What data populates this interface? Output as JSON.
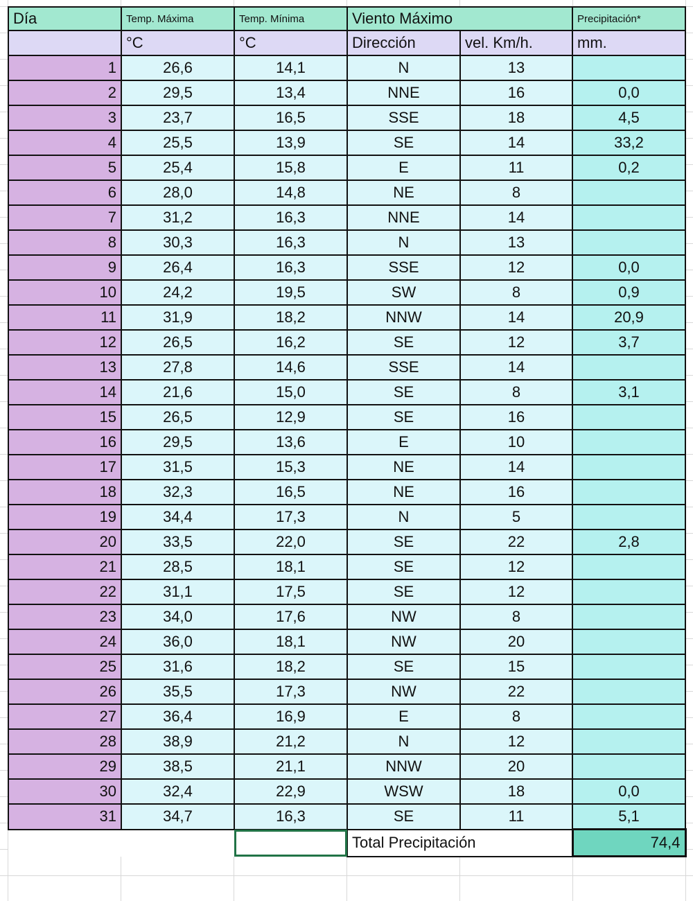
{
  "headers": {
    "dia": "Día",
    "tmax": "Temp. Máxima",
    "tmin": "Temp. Mínima",
    "viento": "Viento Máximo",
    "precip": "Precipitación*"
  },
  "units": {
    "tmax": "°C",
    "tmin": "°C",
    "dir": "Dirección",
    "vel": "vel. Km/h.",
    "precip": "mm."
  },
  "rows": [
    [
      "1",
      "26,6",
      "14,1",
      "N",
      "13",
      ""
    ],
    [
      "2",
      "29,5",
      "13,4",
      "NNE",
      "16",
      "0,0"
    ],
    [
      "3",
      "23,7",
      "16,5",
      "SSE",
      "18",
      "4,5"
    ],
    [
      "4",
      "25,5",
      "13,9",
      "SE",
      "14",
      "33,2"
    ],
    [
      "5",
      "25,4",
      "15,8",
      "E",
      "11",
      "0,2"
    ],
    [
      "6",
      "28,0",
      "14,8",
      "NE",
      "8",
      ""
    ],
    [
      "7",
      "31,2",
      "16,3",
      "NNE",
      "14",
      ""
    ],
    [
      "8",
      "30,3",
      "16,3",
      "N",
      "13",
      ""
    ],
    [
      "9",
      "26,4",
      "16,3",
      "SSE",
      "12",
      "0,0"
    ],
    [
      "10",
      "24,2",
      "19,5",
      "SW",
      "8",
      "0,9"
    ],
    [
      "11",
      "31,9",
      "18,2",
      "NNW",
      "14",
      "20,9"
    ],
    [
      "12",
      "26,5",
      "16,2",
      "SE",
      "12",
      "3,7"
    ],
    [
      "13",
      "27,8",
      "14,6",
      "SSE",
      "14",
      ""
    ],
    [
      "14",
      "21,6",
      "15,0",
      "SE",
      "8",
      "3,1"
    ],
    [
      "15",
      "26,5",
      "12,9",
      "SE",
      "16",
      ""
    ],
    [
      "16",
      "29,5",
      "13,6",
      "E",
      "10",
      ""
    ],
    [
      "17",
      "31,5",
      "15,3",
      "NE",
      "14",
      ""
    ],
    [
      "18",
      "32,3",
      "16,5",
      "NE",
      "16",
      ""
    ],
    [
      "19",
      "34,4",
      "17,3",
      "N",
      "5",
      ""
    ],
    [
      "20",
      "33,5",
      "22,0",
      "SE",
      "22",
      "2,8"
    ],
    [
      "21",
      "28,5",
      "18,1",
      "SE",
      "12",
      ""
    ],
    [
      "22",
      "31,1",
      "17,5",
      "SE",
      "12",
      ""
    ],
    [
      "23",
      "34,0",
      "17,6",
      "NW",
      "8",
      ""
    ],
    [
      "24",
      "36,0",
      "18,1",
      "NW",
      "20",
      ""
    ],
    [
      "25",
      "31,6",
      "18,2",
      "SE",
      "15",
      ""
    ],
    [
      "26",
      "35,5",
      "17,3",
      "NW",
      "22",
      ""
    ],
    [
      "27",
      "36,4",
      "16,9",
      "E",
      "8",
      ""
    ],
    [
      "28",
      "38,9",
      "21,2",
      "N",
      "12",
      ""
    ],
    [
      "29",
      "38,5",
      "21,1",
      "NNW",
      "20",
      ""
    ],
    [
      "30",
      "32,4",
      "22,9",
      "WSW",
      "18",
      "0,0"
    ],
    [
      "31",
      "34,7",
      "16,3",
      "SE",
      "11",
      "5,1"
    ]
  ],
  "total": {
    "label": "Total Precipitación",
    "value": "74,4"
  },
  "colors": {
    "header": "#a2e8d0",
    "units": "#ddd9f5",
    "day": "#d6b2e2",
    "values": "#dbf6fa",
    "precip": "#b5f1ef",
    "total": "#6fd6bf",
    "selection": "#217346"
  }
}
